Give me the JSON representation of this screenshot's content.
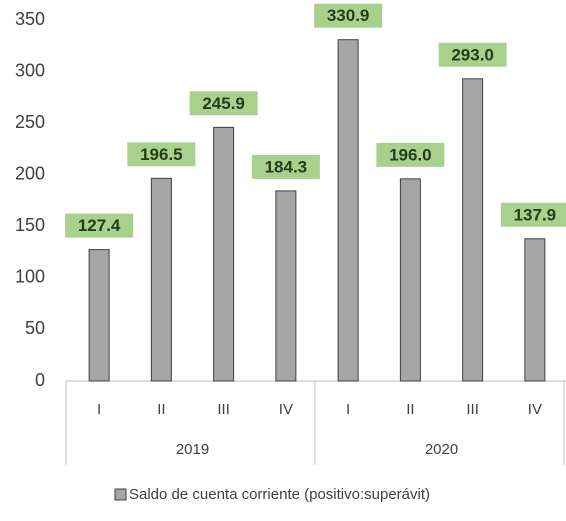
{
  "chart_data": {
    "type": "bar",
    "categories": [
      "I",
      "II",
      "III",
      "IV",
      "I",
      "II",
      "III",
      "IV"
    ],
    "groups": [
      "2019",
      "2020"
    ],
    "series": [
      {
        "name": "Saldo de cuenta corriente (positivo:superávit)",
        "color": "#a6a6a6",
        "values": [
          127.4,
          196.5,
          245.9,
          184.3,
          330.9,
          196.0,
          293.0,
          137.9
        ],
        "value_labels": [
          "127.4",
          "196.5",
          "245.9",
          "184.3",
          "330.9",
          "196.0",
          "293.0",
          "137.9"
        ]
      }
    ],
    "ylim": [
      0,
      350
    ],
    "yticks": [
      0,
      50,
      100,
      150,
      200,
      250,
      300,
      350
    ],
    "grid": false,
    "legend": "bottom"
  }
}
